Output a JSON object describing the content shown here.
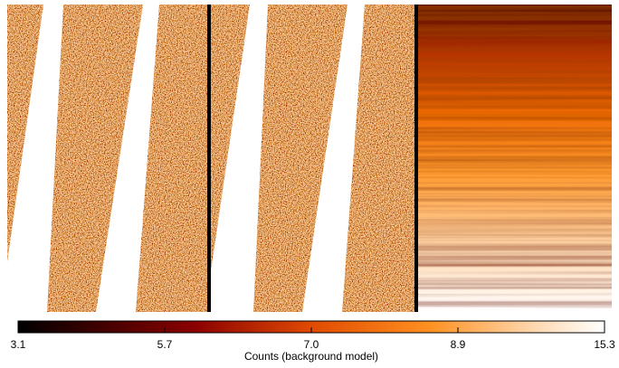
{
  "colorbar": {
    "ticks": [
      3.1,
      5.7,
      {
        "value": 7,
        "label": "7.0"
      },
      8.9,
      15.3
    ],
    "label": "Counts (background model)"
  }
}
